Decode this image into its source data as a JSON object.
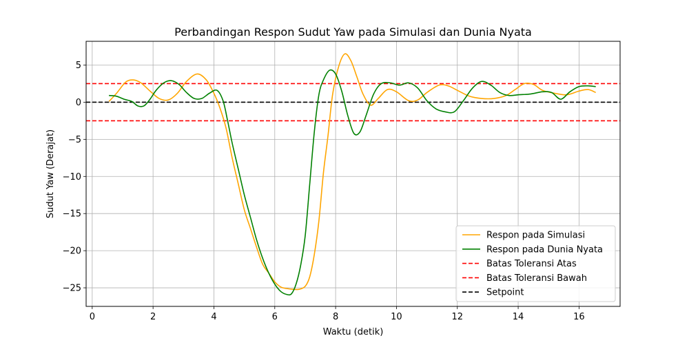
{
  "chart_data": {
    "type": "line",
    "title": "Perbandingan Respon Sudut Yaw pada Simulasi dan Dunia Nyata",
    "xlabel": "Waktu (detik)",
    "ylabel": "Sudut Yaw (Derajat)",
    "xlim": [
      -0.2,
      17.35
    ],
    "ylim": [
      -27.5,
      8.2
    ],
    "xticks": [
      0,
      2,
      4,
      6,
      8,
      10,
      12,
      14,
      16
    ],
    "yticks": [
      5,
      0,
      -5,
      -10,
      -15,
      -20,
      -25
    ],
    "xtick_labels": [
      "0",
      "2",
      "4",
      "6",
      "8",
      "10",
      "12",
      "14",
      "16"
    ],
    "ytick_labels": [
      "5",
      "0",
      "−5",
      "−10",
      "−15",
      "−20",
      "−25"
    ],
    "grid": true,
    "legend_position": "bottom-right",
    "series": [
      {
        "name": "Respon pada Simulasi",
        "color": "#ffa500",
        "style": "solid",
        "x": [
          0.55,
          0.8,
          1.1,
          1.35,
          1.6,
          1.9,
          2.2,
          2.5,
          2.8,
          3.1,
          3.45,
          3.75,
          4.0,
          4.2,
          4.4,
          4.6,
          4.8,
          5.0,
          5.2,
          5.4,
          5.6,
          5.8,
          6.0,
          6.2,
          6.4,
          6.6,
          6.8,
          7.0,
          7.15,
          7.3,
          7.45,
          7.6,
          7.75,
          7.9,
          8.1,
          8.3,
          8.5,
          8.7,
          8.9,
          9.15,
          9.4,
          9.7,
          10.0,
          10.4,
          10.7,
          11.0,
          11.4,
          11.7,
          12.0,
          12.4,
          12.8,
          13.2,
          13.6,
          13.9,
          14.2,
          14.5,
          14.8,
          15.2,
          15.6,
          16.0,
          16.3,
          16.55
        ],
        "y": [
          0.1,
          1.2,
          2.7,
          3.0,
          2.6,
          1.5,
          0.5,
          0.3,
          1.2,
          2.8,
          3.8,
          3.0,
          1.2,
          -0.8,
          -3.5,
          -7.5,
          -11.0,
          -14.5,
          -17.0,
          -19.5,
          -21.8,
          -23.0,
          -24.2,
          -24.9,
          -25.1,
          -25.2,
          -25.2,
          -24.8,
          -23.5,
          -20.5,
          -16.0,
          -9.5,
          -4.5,
          1.0,
          4.8,
          6.5,
          5.6,
          3.4,
          1.1,
          -0.4,
          0.5,
          1.7,
          1.4,
          0.2,
          0.3,
          1.3,
          2.3,
          2.2,
          1.6,
          0.8,
          0.5,
          0.5,
          0.9,
          1.7,
          2.5,
          2.4,
          1.6,
          1.2,
          1.0,
          1.5,
          1.7,
          1.3
        ]
      },
      {
        "name": "Respon pada Dunia Nyata",
        "color": "#008000",
        "style": "solid",
        "x": [
          0.55,
          0.8,
          1.05,
          1.3,
          1.5,
          1.7,
          1.9,
          2.1,
          2.35,
          2.6,
          2.85,
          3.1,
          3.35,
          3.6,
          3.85,
          4.1,
          4.3,
          4.45,
          4.6,
          4.8,
          5.0,
          5.2,
          5.4,
          5.6,
          5.8,
          6.0,
          6.2,
          6.4,
          6.55,
          6.7,
          6.85,
          7.0,
          7.15,
          7.3,
          7.45,
          7.6,
          7.8,
          8.0,
          8.2,
          8.4,
          8.6,
          8.8,
          9.0,
          9.25,
          9.5,
          9.8,
          10.1,
          10.4,
          10.7,
          11.0,
          11.3,
          11.6,
          11.9,
          12.2,
          12.5,
          12.8,
          13.1,
          13.4,
          13.7,
          14.0,
          14.4,
          14.8,
          15.1,
          15.4,
          15.7,
          16.0,
          16.3,
          16.55
        ],
        "y": [
          0.9,
          0.8,
          0.4,
          0.1,
          -0.5,
          -0.5,
          0.4,
          1.6,
          2.6,
          2.9,
          2.4,
          1.3,
          0.5,
          0.5,
          1.2,
          1.6,
          0.2,
          -2.5,
          -5.5,
          -9.0,
          -12.5,
          -15.5,
          -18.5,
          -21.0,
          -23.0,
          -24.5,
          -25.5,
          -25.9,
          -25.8,
          -24.5,
          -22.0,
          -18.0,
          -11.0,
          -4.0,
          1.0,
          3.0,
          4.3,
          3.8,
          1.5,
          -1.8,
          -4.2,
          -4.0,
          -1.8,
          1.1,
          2.5,
          2.6,
          2.3,
          2.6,
          1.9,
          0.2,
          -0.9,
          -1.3,
          -1.3,
          0.2,
          1.9,
          2.8,
          2.3,
          1.3,
          0.9,
          1.0,
          1.1,
          1.4,
          1.3,
          0.4,
          1.4,
          2.1,
          2.2,
          2.1
        ]
      },
      {
        "name": "Batas Toleransi Atas",
        "color": "#ff0000",
        "style": "dashed",
        "x": [
          -0.2,
          17.35
        ],
        "y": [
          2.5,
          2.5
        ]
      },
      {
        "name": "Batas Toleransi Bawah",
        "color": "#ff0000",
        "style": "dashed",
        "x": [
          -0.2,
          17.35
        ],
        "y": [
          -2.5,
          -2.5
        ]
      },
      {
        "name": "Setpoint",
        "color": "#000000",
        "style": "dashed",
        "x": [
          -0.2,
          17.35
        ],
        "y": [
          0,
          0
        ]
      }
    ]
  }
}
